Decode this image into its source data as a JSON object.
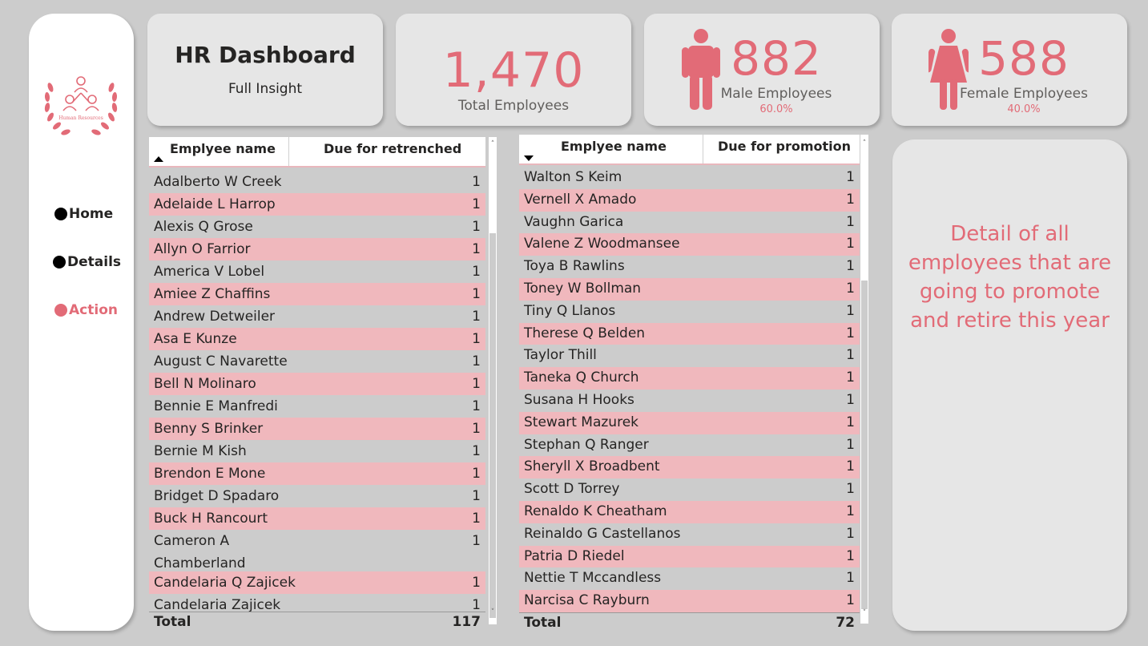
{
  "colors": {
    "accent": "#e26b77",
    "row_highlight": "#f0b8bd",
    "background": "#cccccc",
    "card": "#e6e6e6"
  },
  "sidebar": {
    "logo_text": "Human Resources",
    "nav": [
      {
        "label": "Home",
        "icon": "circle-icon",
        "active": false
      },
      {
        "label": "Details",
        "icon": "circle-icon",
        "active": false
      },
      {
        "label": "Action",
        "icon": "circle-icon",
        "active": true
      }
    ]
  },
  "header": {
    "title": "HR Dashboard",
    "subtitle": "Full Insight"
  },
  "kpis": {
    "total": {
      "value": "1,470",
      "label": "Total Employees"
    },
    "male": {
      "value": "882",
      "label": "Male Employees",
      "pct": "60.0%",
      "icon": "male-person-icon"
    },
    "female": {
      "value": "588",
      "label": "Female Employees",
      "pct": "40.0%",
      "icon": "female-person-icon"
    }
  },
  "retrenched_table": {
    "columns": [
      "Emplyee name",
      "Due for retrenched"
    ],
    "sort": "ascending",
    "rows": [
      {
        "name": "Adalberto W Creek",
        "value": "1"
      },
      {
        "name": "Adelaide L Harrop",
        "value": "1"
      },
      {
        "name": "Alexis Q Grose",
        "value": "1"
      },
      {
        "name": "Allyn O Farrior",
        "value": "1"
      },
      {
        "name": "America V Lobel",
        "value": "1"
      },
      {
        "name": "Amiee Z Chaffins",
        "value": "1"
      },
      {
        "name": "Andrew Detweiler",
        "value": "1"
      },
      {
        "name": "Asa E Kunze",
        "value": "1"
      },
      {
        "name": "August C Navarette",
        "value": "1"
      },
      {
        "name": "Bell N Molinaro",
        "value": "1"
      },
      {
        "name": "Bennie E Manfredi",
        "value": "1"
      },
      {
        "name": "Benny S Brinker",
        "value": "1"
      },
      {
        "name": "Bernie M Kish",
        "value": "1"
      },
      {
        "name": "Brendon E Mone",
        "value": "1"
      },
      {
        "name": "Bridget D Spadaro",
        "value": "1"
      },
      {
        "name": "Buck H Rancourt",
        "value": "1"
      },
      {
        "name": "Cameron A Chamberland",
        "value": "1"
      },
      {
        "name": "Candelaria Q Zajicek",
        "value": "1"
      },
      {
        "name": "Candelaria Zajicek",
        "value": "1"
      }
    ],
    "total_label": "Total",
    "total_value": "117"
  },
  "promotion_table": {
    "columns": [
      "Emplyee name",
      "Due for promotion"
    ],
    "sort": "descending",
    "rows": [
      {
        "name": "Walton S Keim",
        "value": "1"
      },
      {
        "name": "Vernell X Amado",
        "value": "1"
      },
      {
        "name": "Vaughn Garica",
        "value": "1"
      },
      {
        "name": "Valene Z Woodmansee",
        "value": "1"
      },
      {
        "name": "Toya B Rawlins",
        "value": "1"
      },
      {
        "name": "Toney W Bollman",
        "value": "1"
      },
      {
        "name": "Tiny Q Llanos",
        "value": "1"
      },
      {
        "name": "Therese Q Belden",
        "value": "1"
      },
      {
        "name": "Taylor Thill",
        "value": "1"
      },
      {
        "name": "Taneka Q Church",
        "value": "1"
      },
      {
        "name": "Susana H Hooks",
        "value": "1"
      },
      {
        "name": "Stewart Mazurek",
        "value": "1"
      },
      {
        "name": "Stephan Q Ranger",
        "value": "1"
      },
      {
        "name": "Sheryll X Broadbent",
        "value": "1"
      },
      {
        "name": "Scott D Torrey",
        "value": "1"
      },
      {
        "name": "Renaldo K Cheatham",
        "value": "1"
      },
      {
        "name": "Reinaldo G Castellanos",
        "value": "1"
      },
      {
        "name": "Patria D Riedel",
        "value": "1"
      },
      {
        "name": "Nettie T Mccandless",
        "value": "1"
      },
      {
        "name": "Narcisa C Rayburn",
        "value": "1"
      }
    ],
    "total_label": "Total",
    "total_value": "72"
  },
  "detail_text": "Detail of all employees that are going to promote and retire this year"
}
